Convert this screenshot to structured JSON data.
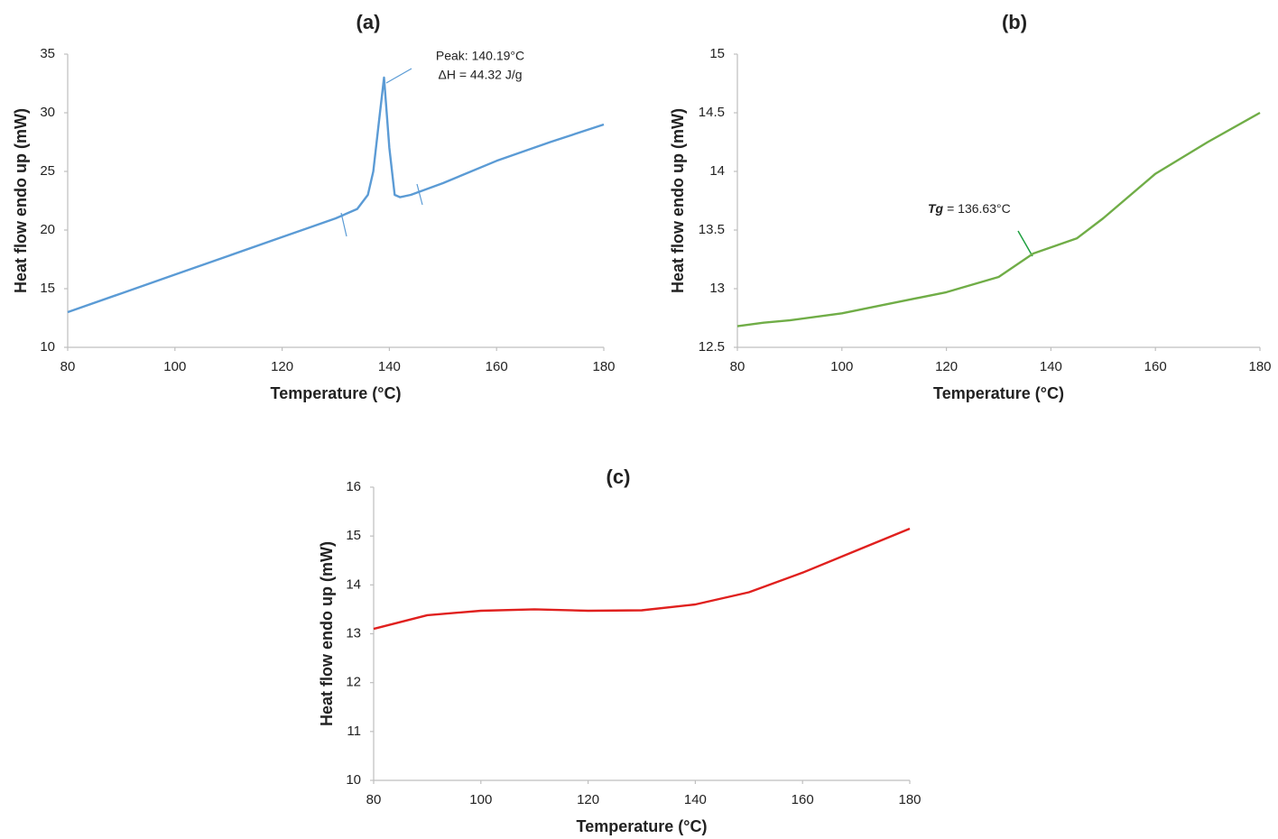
{
  "chart_data": [
    {
      "type": "line",
      "title": "(a)",
      "x_label": "Temperature (°C)",
      "y_label": "Heat flow endo up (mW)",
      "xlim": [
        80,
        180
      ],
      "xticks": [
        80,
        100,
        120,
        140,
        160,
        180
      ],
      "ylim": [
        10,
        35
      ],
      "yticks": [
        10,
        15,
        20,
        25,
        30,
        35
      ],
      "series": [
        {
          "color": "#5b9bd5",
          "x": [
            80,
            90,
            100,
            110,
            120,
            130,
            134,
            136,
            137,
            138,
            139,
            140,
            141,
            142,
            144,
            150,
            160,
            170,
            180
          ],
          "values": [
            13,
            14.6,
            16.2,
            17.8,
            19.4,
            21,
            21.8,
            23,
            25,
            29,
            33,
            27,
            23,
            22.8,
            23,
            24,
            25.9,
            27.5,
            29
          ]
        }
      ],
      "annotations": [
        "Peak: 140.19°C",
        "ΔH = 44.32 J/g"
      ]
    },
    {
      "type": "line",
      "title": "(b)",
      "x_label": "Temperature (°C)",
      "y_label": "Heat flow endo up (mW)",
      "xlim": [
        80,
        180
      ],
      "xticks": [
        80,
        100,
        120,
        140,
        160,
        180
      ],
      "ylim": [
        12.5,
        15
      ],
      "yticks": [
        12.5,
        13,
        13.5,
        14,
        14.5,
        15
      ],
      "series": [
        {
          "color": "#70ad47",
          "x": [
            80,
            85,
            90,
            100,
            110,
            120,
            130,
            136.63,
            145,
            150,
            160,
            170,
            180
          ],
          "values": [
            12.68,
            12.71,
            12.73,
            12.79,
            12.88,
            12.97,
            13.1,
            13.3,
            13.43,
            13.6,
            13.98,
            14.25,
            14.5
          ]
        }
      ],
      "annotations": [
        {
          "label": "Tg",
          "text": "= 136.63°C"
        }
      ]
    },
    {
      "type": "line",
      "title": "(c)",
      "x_label": "Temperature (°C)",
      "y_label": "Heat flow endo up (mW)",
      "xlim": [
        80,
        180
      ],
      "xticks": [
        80,
        100,
        120,
        140,
        160,
        180
      ],
      "ylim": [
        10,
        16
      ],
      "yticks": [
        10,
        11,
        12,
        13,
        14,
        15,
        16
      ],
      "series": [
        {
          "color": "#e0201e",
          "x": [
            80,
            90,
            100,
            110,
            120,
            130,
            140,
            150,
            160,
            170,
            180
          ],
          "values": [
            13.1,
            13.38,
            13.47,
            13.5,
            13.47,
            13.48,
            13.6,
            13.85,
            14.25,
            14.7,
            15.15
          ]
        }
      ]
    }
  ]
}
